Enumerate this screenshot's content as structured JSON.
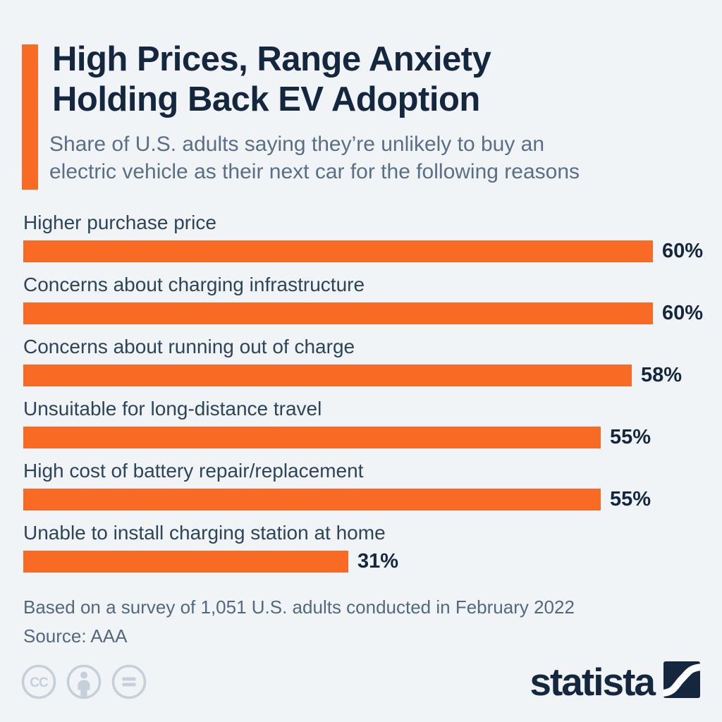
{
  "header": {
    "title_line1": "High Prices, Range Anxiety",
    "title_line2": "Holding Back EV Adoption",
    "subtitle_line1": "Share of U.S. adults saying they’re unlikely to buy an",
    "subtitle_line2": "electric vehicle as their next car for the following reasons"
  },
  "chart_data": {
    "type": "bar",
    "orientation": "horizontal",
    "title": "High Prices, Range Anxiety Holding Back EV Adoption",
    "subtitle": "Share of U.S. adults saying they’re unlikely to buy an electric vehicle as their next car for the following reasons",
    "categories": [
      "Higher purchase price",
      "Concerns about charging infrastructure",
      "Concerns about running out of charge",
      "Unsuitable for long-distance travel",
      "High cost of battery repair/replacement",
      "Unable to install charging station at home"
    ],
    "values": [
      60,
      60,
      58,
      55,
      55,
      31
    ],
    "display_values": [
      "60%",
      "60%",
      "58%",
      "55%",
      "55%",
      "31%"
    ],
    "unit": "%",
    "xlim": [
      0,
      62
    ],
    "grid": false,
    "legend": false,
    "bar_color": "#f96a25",
    "value_label_position": "right-of-bar"
  },
  "footer": {
    "note": "Based on a survey of 1,051 U.S. adults conducted in February 2022",
    "source": "Source: AAA"
  },
  "branding": {
    "logo_text": "statista",
    "license_icons": [
      "cc-icon",
      "attribution-person-icon",
      "no-derivatives-equals-icon"
    ]
  },
  "colors": {
    "background": "#f0f4f7",
    "accent_orange": "#f96a25",
    "navy": "#15273f",
    "category_label": "#2e4459",
    "muted_text": "#53687f",
    "license_icon": "#c5d0db"
  }
}
